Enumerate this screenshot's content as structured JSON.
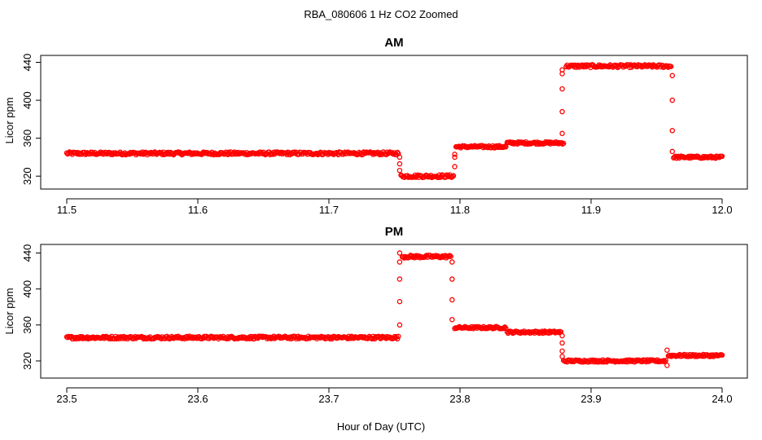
{
  "figure": {
    "title": "RBA_080606  1 Hz CO2 Zoomed",
    "xlabel": "Hour of Day (UTC)"
  },
  "colors": {
    "points": "#ff0000",
    "axes": "#000000",
    "background": "#ffffff"
  },
  "chart_data": [
    {
      "type": "scatter",
      "title": "AM",
      "xlabel": "",
      "ylabel": "Licor ppm",
      "xlim": [
        11.5,
        12.0
      ],
      "ylim": [
        315,
        443
      ],
      "xticks": [
        11.5,
        11.6,
        11.7,
        11.8,
        11.9,
        12.0
      ],
      "xtick_labels": [
        "11.5",
        "11.6",
        "11.7",
        "11.8",
        "11.9",
        "12.0"
      ],
      "yticks": [
        320,
        360,
        400,
        440
      ],
      "ytick_labels": [
        "320",
        "360",
        "400",
        "440"
      ],
      "grid": false,
      "segments": [
        {
          "x_start": 11.5,
          "x_end": 11.753,
          "y": 344,
          "noise": 1.5
        },
        {
          "x_start": 11.755,
          "x_end": 11.795,
          "y": 320,
          "noise": 1.5
        },
        {
          "x_start": 11.797,
          "x_end": 11.835,
          "y": 351,
          "noise": 1.2
        },
        {
          "x_start": 11.836,
          "x_end": 11.879,
          "y": 355,
          "noise": 1.2
        },
        {
          "x_start": 11.881,
          "x_end": 11.961,
          "y": 436,
          "noise": 1.5
        },
        {
          "x_start": 11.963,
          "x_end": 12.0,
          "y": 340,
          "noise": 1.2
        }
      ],
      "transitions": [
        {
          "x": 11.754,
          "y": [
            340,
            333,
            326
          ]
        },
        {
          "x": 11.796,
          "y": [
            330,
            340,
            343
          ]
        },
        {
          "x": 11.878,
          "y": [
            365,
            388,
            412,
            428,
            432
          ]
        },
        {
          "x": 11.962,
          "y": [
            426,
            400,
            368,
            346
          ]
        }
      ]
    },
    {
      "type": "scatter",
      "title": "PM",
      "xlabel": "",
      "ylabel": "Licor ppm",
      "xlim": [
        23.5,
        24.0
      ],
      "ylim": [
        310,
        445
      ],
      "xticks": [
        23.5,
        23.6,
        23.7,
        23.8,
        23.9,
        24.0
      ],
      "xtick_labels": [
        "23.5",
        "23.6",
        "23.7",
        "23.8",
        "23.9",
        "24.0"
      ],
      "yticks": [
        320,
        360,
        400,
        440
      ],
      "ytick_labels": [
        "320",
        "360",
        "400",
        "440"
      ],
      "grid": false,
      "segments": [
        {
          "x_start": 23.5,
          "x_end": 23.753,
          "y": 346,
          "noise": 1.5
        },
        {
          "x_start": 23.756,
          "x_end": 23.793,
          "y": 436,
          "noise": 1.5
        },
        {
          "x_start": 23.796,
          "x_end": 23.835,
          "y": 357,
          "noise": 1.2
        },
        {
          "x_start": 23.836,
          "x_end": 23.877,
          "y": 352,
          "noise": 1.2
        },
        {
          "x_start": 23.879,
          "x_end": 23.957,
          "y": 320,
          "noise": 1.2
        },
        {
          "x_start": 23.959,
          "x_end": 24.0,
          "y": 326,
          "noise": 1.2
        }
      ],
      "transitions": [
        {
          "x": 23.754,
          "y": [
            360,
            386,
            411,
            430,
            440
          ]
        },
        {
          "x": 23.794,
          "y": [
            430,
            411,
            388,
            366
          ]
        },
        {
          "x": 23.878,
          "y": [
            348,
            340,
            331,
            325
          ]
        },
        {
          "x": 23.958,
          "y": [
            315,
            332
          ]
        }
      ]
    }
  ]
}
